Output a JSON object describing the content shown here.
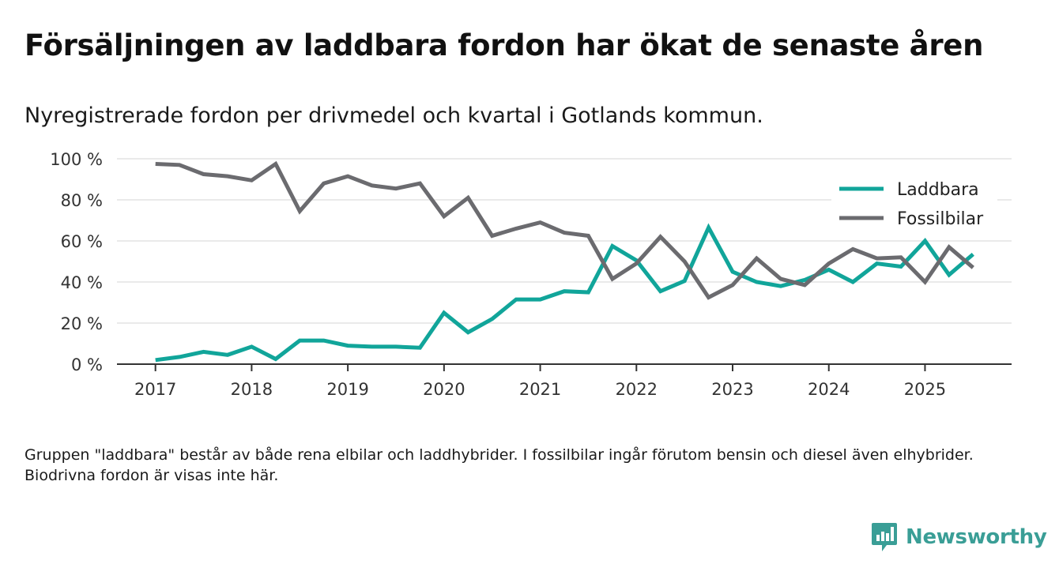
{
  "title": "Försäljningen av laddbara fordon har ökat de senaste åren",
  "subtitle": "Nyregistrerade fordon per drivmedel och kvartal i Gotlands kommun.",
  "note": "Gruppen \"laddbara\" består av både rena elbilar och laddhybrider. I fossilbilar ingår förutom bensin och diesel även elhybrider. Biodrivna fordon är visas inte här.",
  "brand": {
    "name": "Newsworthy",
    "icon": "newsworthy-logo-icon"
  },
  "colors": {
    "laddbara": "#11a59a",
    "fossil": "#6b6b6f",
    "grid": "#dddddd",
    "axis": "#333333",
    "brand": "#3a9e96"
  },
  "chart_data": {
    "type": "line",
    "title": "Försäljningen av laddbara fordon har ökat de senaste åren",
    "xlabel": "",
    "ylabel": "",
    "ylim": [
      0,
      100
    ],
    "y_ticks": [
      {
        "value": 0,
        "label": "0 %"
      },
      {
        "value": 20,
        "label": "20 %"
      },
      {
        "value": 40,
        "label": "40 %"
      },
      {
        "value": 60,
        "label": "60 %"
      },
      {
        "value": 80,
        "label": "80 %"
      },
      {
        "value": 100,
        "label": "100 %"
      }
    ],
    "x_ticks": [
      {
        "value": 2017,
        "label": "2017"
      },
      {
        "value": 2018,
        "label": "2018"
      },
      {
        "value": 2019,
        "label": "2019"
      },
      {
        "value": 2020,
        "label": "2020"
      },
      {
        "value": 2021,
        "label": "2021"
      },
      {
        "value": 2022,
        "label": "2022"
      },
      {
        "value": 2023,
        "label": "2023"
      },
      {
        "value": 2024,
        "label": "2024"
      },
      {
        "value": 2025,
        "label": "2025"
      }
    ],
    "xlim": [
      2016.6,
      2025.9
    ],
    "grid": true,
    "legend_position": "top-right",
    "x": [
      2017,
      2017.25,
      2017.5,
      2017.75,
      2018,
      2018.25,
      2018.5,
      2018.75,
      2019,
      2019.25,
      2019.5,
      2019.75,
      2020,
      2020.25,
      2020.5,
      2020.75,
      2021,
      2021.25,
      2021.5,
      2021.75,
      2022,
      2022.25,
      2022.5,
      2022.75,
      2023,
      2023.25,
      2023.5,
      2023.75,
      2024,
      2024.25,
      2024.5,
      2024.75,
      2025,
      2025.25,
      2025.5
    ],
    "series": [
      {
        "name": "Laddbara",
        "color": "#11a59a",
        "values": [
          2,
          3.5,
          6,
          4.5,
          8.5,
          2.5,
          11.5,
          11.5,
          9,
          8.5,
          8.5,
          8,
          25,
          15.5,
          22,
          31.5,
          31.5,
          35.5,
          35,
          57.5,
          50.5,
          35.5,
          40.5,
          66.5,
          45,
          40,
          38,
          41,
          46,
          40,
          49,
          47.5,
          60,
          43.5,
          53.5
        ]
      },
      {
        "name": "Fossilbilar",
        "color": "#6b6b6f",
        "values": [
          97.5,
          97,
          92.5,
          91.5,
          89.5,
          97.5,
          74.5,
          88,
          91.5,
          87,
          85.5,
          88,
          72,
          81,
          62.5,
          66,
          69,
          64,
          62.5,
          41.5,
          49,
          62,
          50,
          32.5,
          38.5,
          51.5,
          41.5,
          38.5,
          49,
          56,
          51.5,
          52,
          40,
          57,
          47
        ]
      }
    ]
  }
}
